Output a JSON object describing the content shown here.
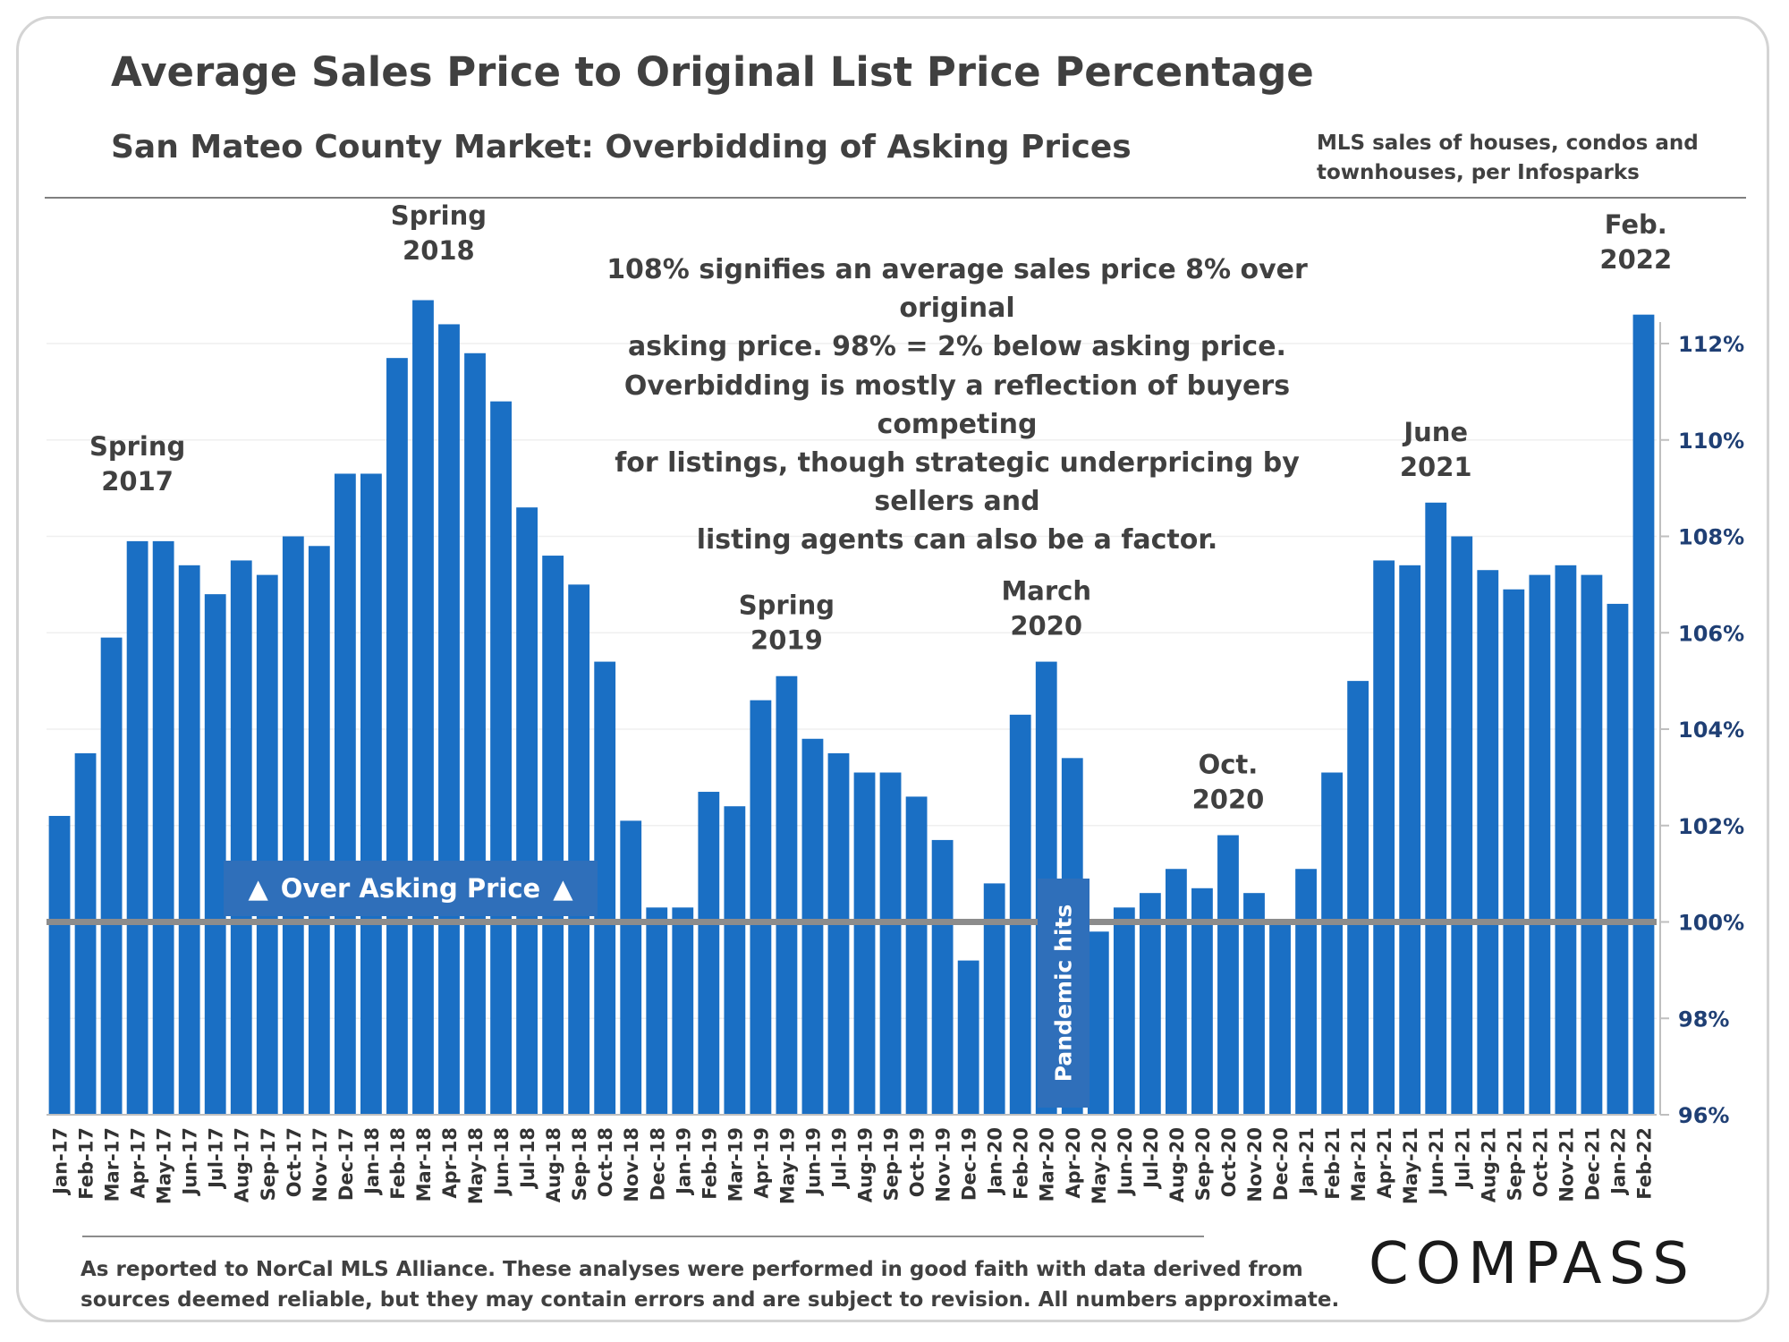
{
  "header": {
    "title": "Average Sales Price to Original List Price Percentage",
    "subtitle": "San Mateo County Market: Overbidding of Asking Prices",
    "source_lines": [
      "MLS sales of houses, condos and",
      "townhouses, per Infosparks"
    ]
  },
  "notes": {
    "note1": [
      "108% signifies an average sales price 8% over original",
      "asking price. 98% = 2% below asking price."
    ],
    "note2": [
      "Overbidding is mostly a reflection of buyers competing",
      "for listings, though strategic underpricing by sellers and",
      "listing agents can also be a factor."
    ]
  },
  "labels": {
    "over_asking": "Over Asking Price",
    "over_asking_icon": "up-triangle-icon",
    "pandemic": "Pandemic hits"
  },
  "footer": {
    "lines": [
      "As reported to NorCal MLS Alliance. These analyses were performed in good faith with data derived from",
      "sources deemed reliable, but they may contain errors and are subject to revision. All numbers approximate."
    ],
    "logo": "COMPASS"
  },
  "colors": {
    "bar": "#1a6fc4",
    "baseline": "#8c8c8c",
    "label_box": "#2f6fba",
    "text": "#404040",
    "tick_label": "#1f3f74"
  },
  "chart_data": {
    "type": "bar",
    "categories": [
      "Jan-17",
      "Feb-17",
      "Mar-17",
      "Apr-17",
      "May-17",
      "Jun-17",
      "Jul-17",
      "Aug-17",
      "Sep-17",
      "Oct-17",
      "Nov-17",
      "Dec-17",
      "Jan-18",
      "Feb-18",
      "Mar-18",
      "Apr-18",
      "May-18",
      "Jun-18",
      "Jul-18",
      "Aug-18",
      "Sep-18",
      "Oct-18",
      "Nov-18",
      "Dec-18",
      "Jan-19",
      "Feb-19",
      "Mar-19",
      "Apr-19",
      "May-19",
      "Jun-19",
      "Jul-19",
      "Aug-19",
      "Sep-19",
      "Oct-19",
      "Nov-19",
      "Dec-19",
      "Jan-20",
      "Feb-20",
      "Mar-20",
      "Apr-20",
      "May-20",
      "Jun-20",
      "Jul-20",
      "Aug-20",
      "Sep-20",
      "Oct-20",
      "Nov-20",
      "Dec-20",
      "Jan-21",
      "Feb-21",
      "Mar-21",
      "Apr-21",
      "May-21",
      "Jun-21",
      "Jul-21",
      "Aug-21",
      "Sep-21",
      "Oct-21",
      "Nov-21",
      "Dec-21",
      "Jan-22",
      "Feb-22"
    ],
    "values": [
      102.2,
      103.5,
      105.9,
      107.9,
      107.9,
      107.4,
      106.8,
      107.5,
      107.2,
      108.0,
      107.8,
      109.3,
      109.3,
      111.7,
      112.9,
      112.4,
      111.8,
      110.8,
      108.6,
      107.6,
      107.0,
      105.4,
      102.1,
      100.3,
      100.3,
      102.7,
      102.4,
      104.6,
      105.1,
      103.8,
      103.5,
      103.1,
      103.1,
      102.6,
      101.7,
      99.2,
      100.8,
      104.3,
      105.4,
      103.4,
      99.8,
      100.3,
      100.6,
      101.1,
      100.7,
      101.8,
      100.6,
      100.0,
      101.1,
      103.1,
      105.0,
      107.5,
      107.4,
      108.7,
      108.0,
      107.3,
      106.9,
      107.2,
      107.4,
      107.2,
      106.6,
      112.6
    ],
    "ylim": [
      96,
      113
    ],
    "yticks": [
      96,
      98,
      100,
      102,
      104,
      106,
      108,
      110,
      112
    ],
    "ytick_suffix": "%",
    "y_axis_position": "right",
    "baseline": 100,
    "grid": true,
    "annotations": [
      {
        "category": "Mar-17",
        "lines": [
          "Spring",
          "2017"
        ]
      },
      {
        "category": "Feb-18",
        "lines": [
          "Spring",
          "2018"
        ]
      },
      {
        "category": "May-19",
        "lines": [
          "Spring",
          "2019"
        ]
      },
      {
        "category": "Mar-20",
        "lines": [
          "March",
          "2020"
        ]
      },
      {
        "category": "Oct-20",
        "lines": [
          "Oct.",
          "2020"
        ]
      },
      {
        "category": "Jun-21",
        "lines": [
          "June",
          "2021"
        ]
      },
      {
        "category": "Jan-22",
        "lines": [
          "Feb.",
          "2022"
        ]
      }
    ]
  }
}
